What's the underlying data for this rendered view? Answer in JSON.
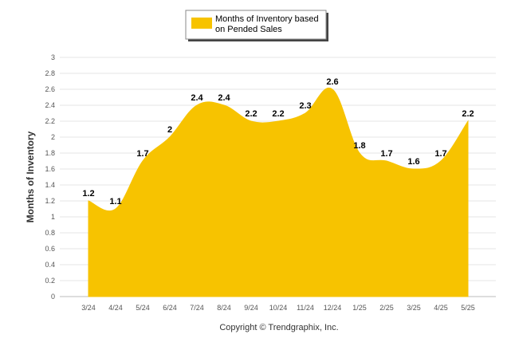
{
  "chart_data": {
    "type": "area",
    "categories": [
      "3/24",
      "4/24",
      "5/24",
      "6/24",
      "7/24",
      "8/24",
      "9/24",
      "10/24",
      "11/24",
      "12/24",
      "1/25",
      "2/25",
      "3/25",
      "4/25",
      "5/25"
    ],
    "series": [
      {
        "name": "Months of Inventory based on Pended Sales",
        "name_lines": [
          "Months of Inventory based",
          "on Pended Sales"
        ],
        "values": [
          1.2,
          1.1,
          1.7,
          2,
          2.4,
          2.4,
          2.2,
          2.2,
          2.3,
          2.6,
          1.8,
          1.7,
          1.6,
          1.7,
          2.2
        ],
        "data_labels": [
          "1.2",
          "1.1",
          "1.7",
          "2",
          "2.4",
          "2.4",
          "2.2",
          "2.2",
          "2.3",
          "2.6",
          "1.8",
          "1.7",
          "1.6",
          "1.7",
          "2.2"
        ],
        "color": "#F7C300"
      }
    ],
    "ylabel": "Months of Inventory",
    "xlabel": "",
    "ylim": [
      0,
      3
    ],
    "yticks": [
      "0",
      "0.2",
      "0.4",
      "0.6",
      "0.8",
      "1",
      "1.2",
      "1.4",
      "1.6",
      "1.8",
      "2",
      "2.2",
      "2.4",
      "2.6",
      "2.8",
      "3"
    ],
    "grid": true,
    "legend_position": "top-center"
  },
  "footer": {
    "copyright": "Copyright © Trendgraphix, Inc."
  }
}
